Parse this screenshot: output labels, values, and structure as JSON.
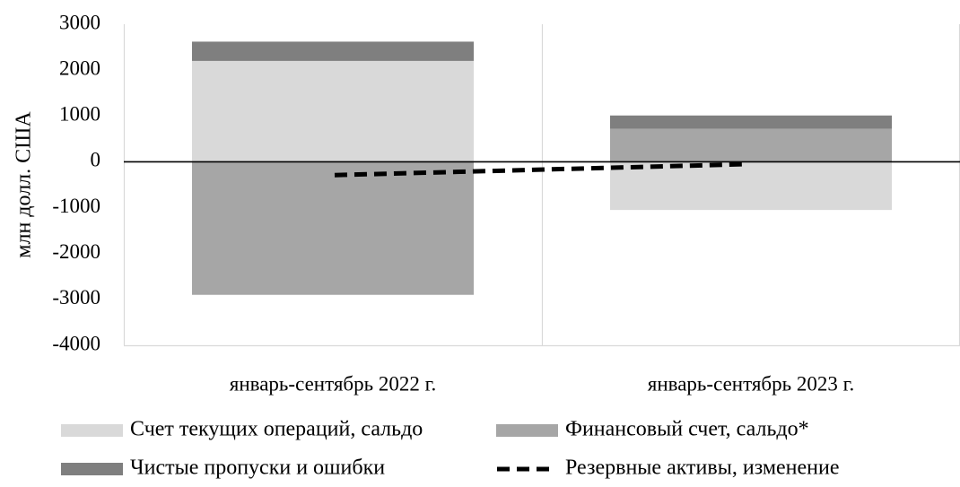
{
  "chart_data": {
    "type": "bar",
    "stacked": true,
    "categories": [
      "январь-сентябрь 2022 г.",
      "январь-сентябрь 2023 г."
    ],
    "series": [
      {
        "name": "Счет текущих операций, сальдо",
        "kind": "bar",
        "color": "#d9d9d9",
        "values": [
          2200,
          -1050
        ]
      },
      {
        "name": "Финансовый счет, сальдо*",
        "kind": "bar",
        "color": "#a6a6a6",
        "values": [
          -2900,
          720
        ]
      },
      {
        "name": "Чистые пропуски и ошибки",
        "kind": "bar",
        "color": "#7f7f7f",
        "values": [
          420,
          290
        ]
      },
      {
        "name": "Резервные активы, изменение",
        "kind": "line",
        "style": "dashed",
        "color": "#000000",
        "values": [
          -290,
          -50
        ]
      }
    ],
    "ylabel": "млн долл. США",
    "ylim": [
      -4000,
      3000
    ],
    "yticks": [
      3000,
      2000,
      1000,
      0,
      -1000,
      -2000,
      -3000,
      -4000
    ],
    "grid": "vertical",
    "legend_position": "bottom"
  }
}
